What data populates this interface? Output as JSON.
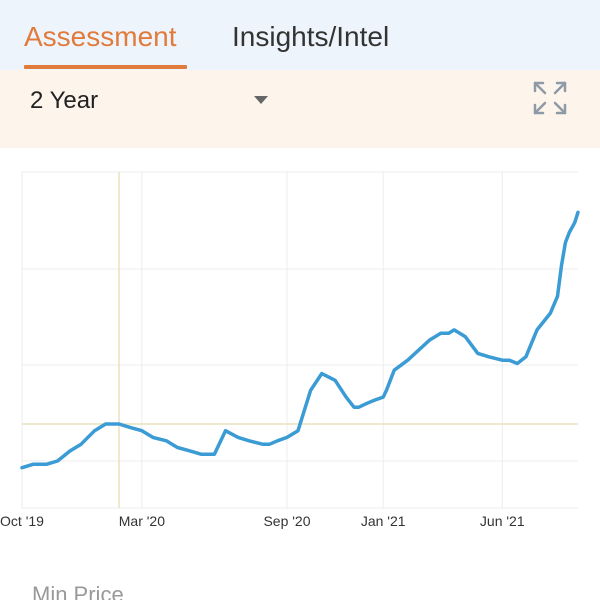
{
  "tabs": [
    {
      "label": "Assessment",
      "active": true
    },
    {
      "label": "Insights/Intel",
      "active": false
    }
  ],
  "filter": {
    "selected_range": "2 Year",
    "dropdown_icon": "caret-down-icon",
    "expand_icon": "expand-icon"
  },
  "colors": {
    "accent": "#e07b3c",
    "line": "#3a9bd5",
    "reference_line": "#e8e2b8",
    "tab_bar_bg": "#eef4fb",
    "filter_bar_bg": "#fdf4ec"
  },
  "chart_data": {
    "type": "line",
    "x_labels": [
      "Oct '19",
      "Mar '20",
      "Sep '20",
      "Jan '21",
      "Jun '21"
    ],
    "title": "",
    "xlabel": "",
    "ylabel": "",
    "y_tick_labels_shown": false,
    "grid": true,
    "ylim": [
      0,
      100
    ],
    "series": [
      {
        "x": [
          "2019-10-01",
          "2019-10-15",
          "2019-11-01",
          "2019-11-15",
          "2019-12-01",
          "2019-12-15",
          "2020-01-01",
          "2020-01-15",
          "2020-02-01",
          "2020-02-15",
          "2020-03-01",
          "2020-03-15",
          "2020-04-01",
          "2020-04-15",
          "2020-05-01",
          "2020-05-15",
          "2020-06-01",
          "2020-06-15",
          "2020-07-01",
          "2020-07-15",
          "2020-08-01",
          "2020-08-05",
          "2020-08-10",
          "2020-08-20",
          "2020-09-01",
          "2020-09-15",
          "2020-10-01",
          "2020-10-15",
          "2020-11-01",
          "2020-11-15",
          "2020-11-25",
          "2020-12-01",
          "2020-12-10",
          "2020-12-20",
          "2021-01-01",
          "2021-01-05",
          "2021-01-15",
          "2021-02-01",
          "2021-02-15",
          "2021-03-01",
          "2021-03-15",
          "2021-03-25",
          "2021-04-01",
          "2021-04-15",
          "2021-05-01",
          "2021-05-15",
          "2021-06-01",
          "2021-06-10",
          "2021-06-20",
          "2021-07-01",
          "2021-07-15",
          "2021-08-01",
          "2021-08-10",
          "2021-08-15",
          "2021-08-20",
          "2021-08-25",
          "2021-09-01",
          "2021-09-05"
        ],
        "y": [
          12,
          13,
          13,
          14,
          17,
          19,
          23,
          25,
          25,
          24,
          23,
          21,
          20,
          18,
          17,
          16,
          16,
          23,
          21,
          20,
          19,
          19,
          19,
          20,
          21,
          23,
          35,
          40,
          38,
          33,
          30,
          30,
          31,
          32,
          33,
          35,
          41,
          44,
          47,
          50,
          52,
          52,
          53,
          51,
          46,
          45,
          44,
          44,
          43,
          45,
          53,
          58,
          63,
          72,
          79,
          82,
          85,
          88
        ]
      }
    ]
  },
  "footer": {
    "min_price_label": "Min Price"
  }
}
